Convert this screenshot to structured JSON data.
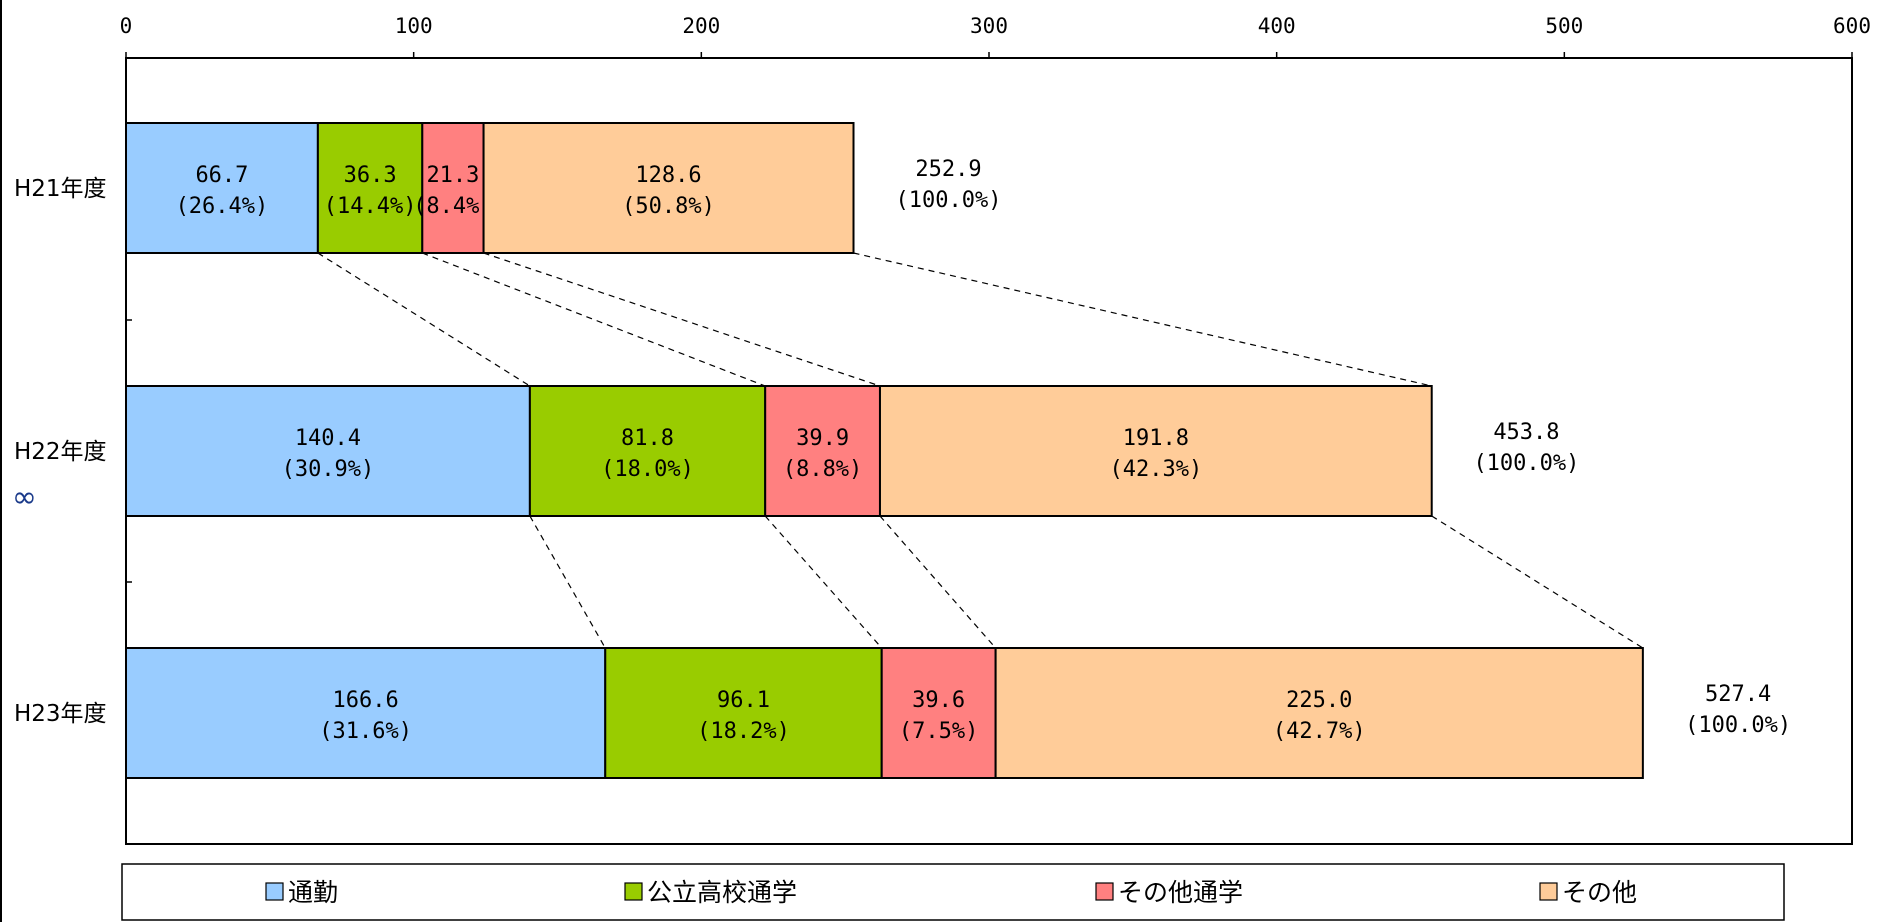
{
  "page_mark": "∞",
  "chart_data": {
    "type": "bar",
    "orientation": "horizontal",
    "stacked": true,
    "title": "",
    "xlabel": "",
    "ylabel": "",
    "xlim": [
      0,
      600
    ],
    "x_ticks": [
      0,
      100,
      200,
      300,
      400,
      500,
      600
    ],
    "x_tick_labels": [
      "0",
      "100",
      "200",
      "300",
      "400",
      "500",
      "600"
    ],
    "grid": false,
    "legend_position": "bottom",
    "categories": [
      "H21年度",
      "H22年度",
      "H23年度"
    ],
    "series": [
      {
        "name": "通勤",
        "color": "#99ccff",
        "values": [
          66.7,
          140.4,
          166.6
        ],
        "labels": [
          "66.7\n(26.4%)",
          "140.4\n(30.9%)",
          "166.6\n(31.6%)"
        ]
      },
      {
        "name": "公立高校通学",
        "color": "#99cc00",
        "values": [
          36.3,
          81.8,
          96.1
        ],
        "labels": [
          "36.3\n(14.4%)",
          "81.8\n(18.0%)",
          "96.1\n(18.2%)"
        ]
      },
      {
        "name": "その他通学",
        "color": "#ff8080",
        "values": [
          21.3,
          39.9,
          39.6
        ],
        "labels": [
          "21.3\n(8.4%)",
          "39.9\n(8.8%)",
          "39.6\n(7.5%)"
        ]
      },
      {
        "name": "その他",
        "color": "#ffcc99",
        "values": [
          128.6,
          191.8,
          225.0
        ],
        "labels": [
          "128.6\n(50.8%)",
          "191.8\n(42.3%)",
          "225.0\n(42.7%)"
        ]
      }
    ],
    "totals": [
      252.9,
      453.8,
      527.4
    ],
    "total_labels": [
      "252.9\n(100.0%)",
      "453.8\n(100.0%)",
      "527.4\n(100.0%)"
    ],
    "series_connector_lines": true
  }
}
